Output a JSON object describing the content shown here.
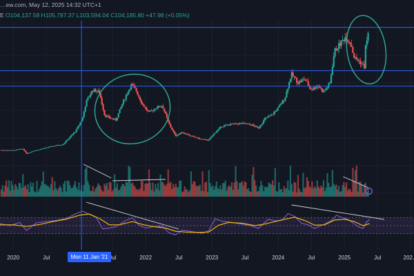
{
  "header": {
    "line1": "…ew.com, May 12, 2025 14:32 UTC+1",
    "open_label": "E",
    "ohlc": "O104,137.58 H105,787.37 L103,594.04 C104,185.80",
    "change": "+47.98 (+0.05%)"
  },
  "crosshair_date": "Mon 11 Jan '21",
  "x_ticks": [
    "2020",
    "Jul",
    "Jul",
    "2022",
    "Jul",
    "2023",
    "Jul",
    "2024",
    "Jul",
    "2025",
    "Jul",
    "202…"
  ],
  "x_tick_dates": [
    2020.0,
    2020.5,
    2021.5,
    2022.0,
    2022.5,
    2023.0,
    2023.5,
    2024.0,
    2024.5,
    2025.0,
    2025.5,
    2026.0
  ],
  "colors": {
    "up": "#26a69a",
    "down": "#ef5350",
    "rsi": "#7e57c2",
    "rsi_ma": "#f0b90b",
    "drawing": "#2ea78f",
    "hline": "#2962ff",
    "trendline": "#d1d4dc"
  },
  "horizontal_levels": [
    109500,
    73800,
    61000
  ],
  "chart_data": [
    {
      "type": "line",
      "title": "",
      "ylabel": "",
      "x_range": [
        2019.8,
        2026.05
      ],
      "y_range": [
        0,
        115000
      ],
      "close_series": [
        [
          2019.85,
          8200
        ],
        [
          2020.0,
          8000
        ],
        [
          2020.15,
          9300
        ],
        [
          2020.2,
          5200
        ],
        [
          2020.3,
          7500
        ],
        [
          2020.45,
          9500
        ],
        [
          2020.6,
          11500
        ],
        [
          2020.75,
          13000
        ],
        [
          2020.85,
          18500
        ],
        [
          2020.95,
          24500
        ],
        [
          2021.05,
          35000
        ],
        [
          2021.1,
          48000
        ],
        [
          2021.2,
          58000
        ],
        [
          2021.3,
          56000
        ],
        [
          2021.38,
          37000
        ],
        [
          2021.45,
          35000
        ],
        [
          2021.55,
          33000
        ],
        [
          2021.65,
          47000
        ],
        [
          2021.78,
          62000
        ],
        [
          2021.85,
          58000
        ],
        [
          2021.95,
          46000
        ],
        [
          2022.05,
          39000
        ],
        [
          2022.15,
          43000
        ],
        [
          2022.25,
          45000
        ],
        [
          2022.35,
          30000
        ],
        [
          2022.45,
          20000
        ],
        [
          2022.55,
          23000
        ],
        [
          2022.7,
          19500
        ],
        [
          2022.85,
          17000
        ],
        [
          2022.95,
          16500
        ],
        [
          2023.05,
          23000
        ],
        [
          2023.15,
          28000
        ],
        [
          2023.3,
          29500
        ],
        [
          2023.45,
          30200
        ],
        [
          2023.6,
          29000
        ],
        [
          2023.7,
          26500
        ],
        [
          2023.8,
          34000
        ],
        [
          2023.9,
          37000
        ],
        [
          2024.0,
          43000
        ],
        [
          2024.1,
          51000
        ],
        [
          2024.2,
          71000
        ],
        [
          2024.3,
          64000
        ],
        [
          2024.4,
          67000
        ],
        [
          2024.5,
          58000
        ],
        [
          2024.6,
          62000
        ],
        [
          2024.68,
          56000
        ],
        [
          2024.78,
          63000
        ],
        [
          2024.85,
          90000
        ],
        [
          2024.95,
          97000
        ],
        [
          2025.02,
          102000
        ],
        [
          2025.1,
          96000
        ],
        [
          2025.15,
          84000
        ],
        [
          2025.22,
          82000
        ],
        [
          2025.3,
          77000
        ],
        [
          2025.32,
          94000
        ],
        [
          2025.36,
          104185
        ]
      ]
    },
    {
      "type": "line",
      "title": "",
      "ylabel": "",
      "y_range": [
        0,
        100
      ],
      "series": [
        {
          "values": [
            [
              2019.8,
              55
            ],
            [
              2019.95,
              50
            ],
            [
              2020.1,
              58
            ],
            [
              2020.2,
              38
            ],
            [
              2020.35,
              57
            ],
            [
              2020.5,
              60
            ],
            [
              2020.65,
              63
            ],
            [
              2020.8,
              68
            ],
            [
              2020.95,
              80
            ],
            [
              2021.05,
              86
            ],
            [
              2021.15,
              78
            ],
            [
              2021.25,
              71
            ],
            [
              2021.35,
              42
            ],
            [
              2021.45,
              44
            ],
            [
              2021.55,
              47
            ],
            [
              2021.7,
              63
            ],
            [
              2021.8,
              70
            ],
            [
              2021.9,
              51
            ],
            [
              2022.0,
              44
            ],
            [
              2022.1,
              47
            ],
            [
              2022.25,
              49
            ],
            [
              2022.35,
              32
            ],
            [
              2022.45,
              27
            ],
            [
              2022.55,
              39
            ],
            [
              2022.7,
              35
            ],
            [
              2022.85,
              31
            ],
            [
              2022.95,
              37
            ],
            [
              2023.05,
              67
            ],
            [
              2023.15,
              61
            ],
            [
              2023.3,
              58
            ],
            [
              2023.45,
              54
            ],
            [
              2023.6,
              49
            ],
            [
              2023.7,
              43
            ],
            [
              2023.85,
              66
            ],
            [
              2023.95,
              62
            ],
            [
              2024.05,
              63
            ],
            [
              2024.15,
              80
            ],
            [
              2024.25,
              73
            ],
            [
              2024.35,
              56
            ],
            [
              2024.45,
              52
            ],
            [
              2024.55,
              43
            ],
            [
              2024.65,
              50
            ],
            [
              2024.8,
              62
            ],
            [
              2024.88,
              76
            ],
            [
              2024.97,
              70
            ],
            [
              2025.05,
              66
            ],
            [
              2025.12,
              58
            ],
            [
              2025.2,
              48
            ],
            [
              2025.28,
              43
            ],
            [
              2025.33,
              58
            ],
            [
              2025.38,
              66
            ]
          ]
        },
        {
          "values": [
            [
              2019.8,
              52
            ],
            [
              2020.0,
              52
            ],
            [
              2020.2,
              48
            ],
            [
              2020.4,
              53
            ],
            [
              2020.6,
              60
            ],
            [
              2020.8,
              66
            ],
            [
              2021.0,
              76
            ],
            [
              2021.15,
              79
            ],
            [
              2021.3,
              68
            ],
            [
              2021.45,
              52
            ],
            [
              2021.6,
              52
            ],
            [
              2021.8,
              60
            ],
            [
              2021.95,
              53
            ],
            [
              2022.1,
              48
            ],
            [
              2022.3,
              44
            ],
            [
              2022.45,
              36
            ],
            [
              2022.6,
              34
            ],
            [
              2022.8,
              33
            ],
            [
              2022.95,
              34
            ],
            [
              2023.1,
              51
            ],
            [
              2023.25,
              58
            ],
            [
              2023.45,
              56
            ],
            [
              2023.65,
              50
            ],
            [
              2023.8,
              54
            ],
            [
              2023.95,
              60
            ],
            [
              2024.1,
              66
            ],
            [
              2024.25,
              71
            ],
            [
              2024.4,
              63
            ],
            [
              2024.55,
              51
            ],
            [
              2024.7,
              52
            ],
            [
              2024.85,
              64
            ],
            [
              2025.0,
              66
            ],
            [
              2025.15,
              60
            ],
            [
              2025.28,
              50
            ],
            [
              2025.38,
              55
            ]
          ]
        }
      ]
    }
  ]
}
